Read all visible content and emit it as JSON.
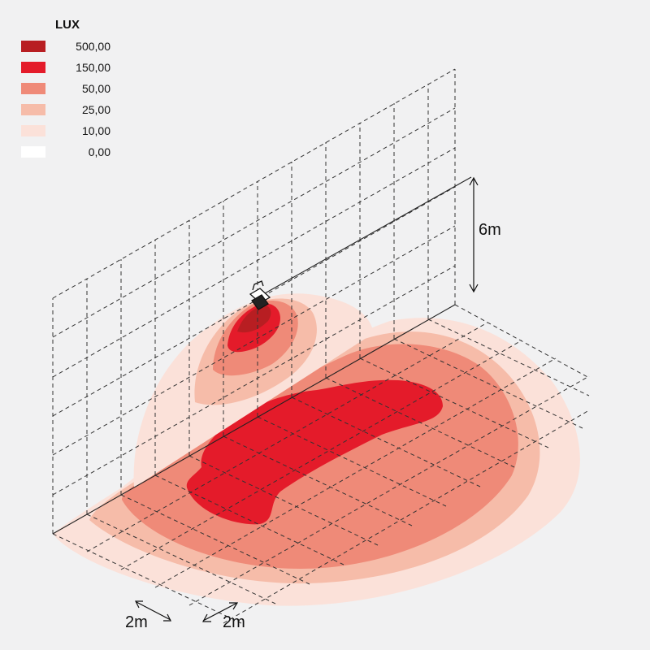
{
  "legend": {
    "title": "LUX",
    "items": [
      {
        "label": "500,00",
        "color": "#b81e22"
      },
      {
        "label": "150,00",
        "color": "#e41b2a"
      },
      {
        "label": "50,00",
        "color": "#ef8a78"
      },
      {
        "label": "25,00",
        "color": "#f6bca9"
      },
      {
        "label": "10,00",
        "color": "#fbe1d9"
      },
      {
        "label": "0,00",
        "color": "#ffffff"
      }
    ]
  },
  "dimensions": {
    "height": "6m",
    "grid_a": "2m",
    "grid_b": "2m"
  }
}
